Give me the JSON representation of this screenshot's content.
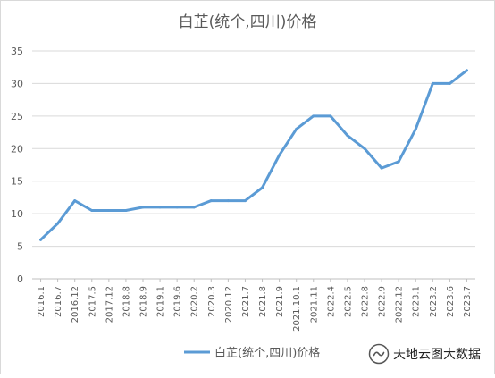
{
  "chart_data": {
    "type": "line",
    "title": "白芷(统个,四川)价格",
    "categories": [
      "2016.1",
      "2016.7",
      "2016.12",
      "2017.5",
      "2017.12",
      "2018.8",
      "2018.9",
      "2019.1",
      "2019.6",
      "2020.2",
      "2020.3",
      "2020.12",
      "2021.7",
      "2021.8",
      "2021.9",
      "2021.10.1",
      "2021.11",
      "2022.4",
      "2022.5",
      "2022.8",
      "2022.9",
      "2022.12",
      "2023.1",
      "2023.2",
      "2023.6",
      "2023.7"
    ],
    "series": [
      {
        "name": "白芷(统个,四川)价格",
        "color": "#5b9bd5",
        "values": [
          6,
          8.5,
          12,
          10.5,
          10.5,
          10.5,
          11,
          11,
          11,
          11,
          12,
          12,
          12,
          14,
          19,
          23,
          25,
          25,
          22,
          20,
          17,
          18,
          23,
          30,
          30,
          32
        ]
      }
    ],
    "ylim": [
      0,
      35
    ],
    "yticks": [
      0,
      5,
      10,
      15,
      20,
      25,
      30,
      35
    ],
    "grid": true,
    "legend_position": "bottom"
  },
  "watermark": {
    "text": "天地云图大数据"
  }
}
